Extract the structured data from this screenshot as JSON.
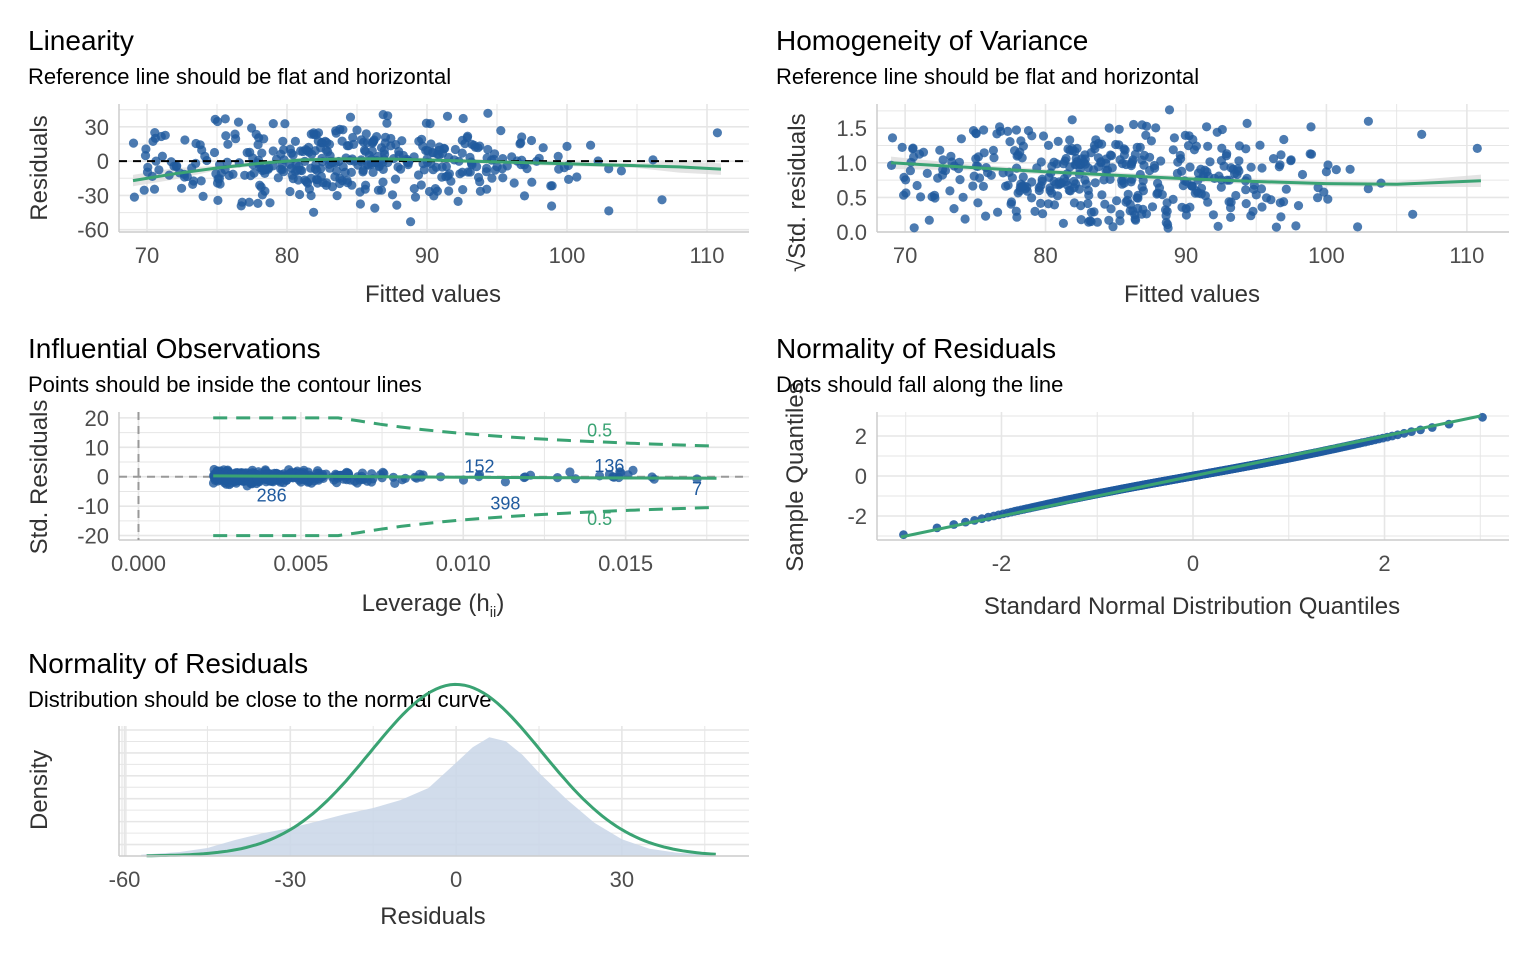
{
  "colors": {
    "point": "#1f5a9e",
    "fit": "#3aa373",
    "band": "#d9d9d9",
    "grid": "#e6e6e6",
    "density_fill": "#c9d6e8",
    "ref": "#000000",
    "contour": "#3aa373",
    "cutoff": "#999999"
  },
  "chart_data": [
    {
      "id": "linearity",
      "type": "scatter",
      "title": "Linearity",
      "subtitle": "Reference line should be flat and horizontal",
      "xlabel": "Fitted values",
      "ylabel": "Residuals",
      "xlim": [
        68,
        113
      ],
      "ylim": [
        -62,
        50
      ],
      "xticks": [
        70,
        80,
        90,
        100,
        110
      ],
      "yticks": [
        -60,
        -30,
        0,
        30
      ],
      "ytick_labels": [
        "-60",
        "-30",
        "0",
        "30"
      ],
      "reference_line": 0,
      "n_points": 400,
      "points_note": "approximately 400 observations spread between fitted 69-111 and residuals -57 to 46",
      "smooth": {
        "x": [
          69,
          72,
          75,
          78,
          81,
          84,
          87,
          90,
          93,
          96,
          99,
          102,
          105,
          108,
          111
        ],
        "y": [
          -17,
          -11,
          -6,
          -2,
          1,
          2,
          2,
          1,
          0,
          -1,
          -2,
          -3,
          -4,
          -5,
          -7
        ]
      }
    },
    {
      "id": "homogeneity",
      "type": "scatter",
      "title": "Homogeneity of Variance",
      "subtitle": "Reference line should be flat and horizontal",
      "xlabel": "Fitted values",
      "ylabel": "Std. residuals",
      "ylabel_prefix": "√",
      "xlim": [
        68,
        113
      ],
      "ylim": [
        0,
        1.85
      ],
      "xticks": [
        70,
        80,
        90,
        100,
        110
      ],
      "yticks": [
        0,
        0.5,
        1,
        1.5
      ],
      "ytick_labels": [
        "0.0",
        "0.5",
        "1.0",
        "1.5"
      ],
      "smooth": {
        "x": [
          69,
          75,
          80,
          85,
          90,
          95,
          100,
          105,
          111
        ],
        "y": [
          1.0,
          0.93,
          0.87,
          0.82,
          0.77,
          0.73,
          0.7,
          0.69,
          0.74
        ]
      }
    },
    {
      "id": "influential",
      "type": "scatter",
      "title": "Influential Observations",
      "subtitle": "Points should be inside the contour lines",
      "xlabel": "Leverage (h",
      "xlabel_sub": "ii",
      "xlabel_end": ")",
      "ylabel": "Std. Residuals",
      "xlim": [
        -0.0006,
        0.0188
      ],
      "ylim": [
        -21.5,
        22
      ],
      "xticks": [
        0,
        0.005,
        0.01,
        0.015
      ],
      "xtick_labels": [
        "0.000",
        "0.005",
        "0.010",
        "0.015"
      ],
      "yticks": [
        -20,
        -10,
        0,
        10,
        20
      ],
      "ytick_labels": [
        "-20",
        "-10",
        "0",
        "10",
        "20"
      ],
      "contour_labels": [
        "0.5",
        "0.5"
      ],
      "contour_label_x": 0.0142,
      "contour_label_y": [
        16,
        -14
      ],
      "labeled_points": [
        {
          "label": "152",
          "x": 0.0105,
          "y": 3.8
        },
        {
          "label": "136",
          "x": 0.0145,
          "y": 4.0
        },
        {
          "label": "286",
          "x": 0.0041,
          "y": -6.0
        },
        {
          "label": "398",
          "x": 0.0113,
          "y": -8.8
        },
        {
          "label": "7",
          "x": 0.0172,
          "y": -3.8
        }
      ],
      "smooth": {
        "x": [
          0.0023,
          0.006,
          0.01,
          0.014,
          0.0178
        ],
        "y": [
          0.3,
          0.1,
          -0.2,
          -0.4,
          -0.5
        ]
      }
    },
    {
      "id": "qq",
      "type": "scatter",
      "title": "Normality of Residuals",
      "subtitle": "Dots should fall along the line",
      "xlabel": "Standard Normal Distribution Quantiles",
      "ylabel": "Sample Quantiles",
      "xlim": [
        -3.3,
        3.3
      ],
      "ylim": [
        -3.2,
        3.2
      ],
      "xticks": [
        -2,
        0,
        2
      ],
      "xtick_labels": [
        "-2",
        "0",
        "2"
      ],
      "yticks": [
        -2,
        0,
        2
      ],
      "ytick_labels": [
        "-2",
        "0",
        "2"
      ],
      "line": {
        "x": [
          -3.05,
          3.0
        ],
        "y": [
          -3.05,
          3.0
        ]
      }
    },
    {
      "id": "density",
      "type": "area",
      "title": "Normality of Residuals",
      "subtitle": "Distribution should be close to the normal curve",
      "xlabel": "Residuals",
      "ylabel": "Density",
      "xlim": [
        -61,
        53
      ],
      "ylim": [
        0,
        0.0195
      ],
      "xticks": [
        -60,
        -30,
        0,
        30
      ],
      "xtick_labels": [
        "-60",
        "-30",
        "0",
        "30"
      ],
      "normal_curve": {
        "mean": 0,
        "sd": 15.5,
        "xrange": [
          -56,
          47
        ]
      },
      "empirical_density": {
        "x": [
          -57,
          -50,
          -45,
          -40,
          -35,
          -30,
          -25,
          -20,
          -15,
          -10,
          -5,
          0,
          3,
          6,
          9,
          12,
          15,
          20,
          25,
          30,
          35,
          40,
          46
        ],
        "y": [
          0.0002,
          0.0006,
          0.0012,
          0.0024,
          0.0034,
          0.0042,
          0.0052,
          0.0063,
          0.0072,
          0.0084,
          0.0102,
          0.014,
          0.0163,
          0.0178,
          0.0172,
          0.0152,
          0.0125,
          0.0085,
          0.005,
          0.0025,
          0.0011,
          0.0005,
          0.0002
        ]
      }
    }
  ]
}
